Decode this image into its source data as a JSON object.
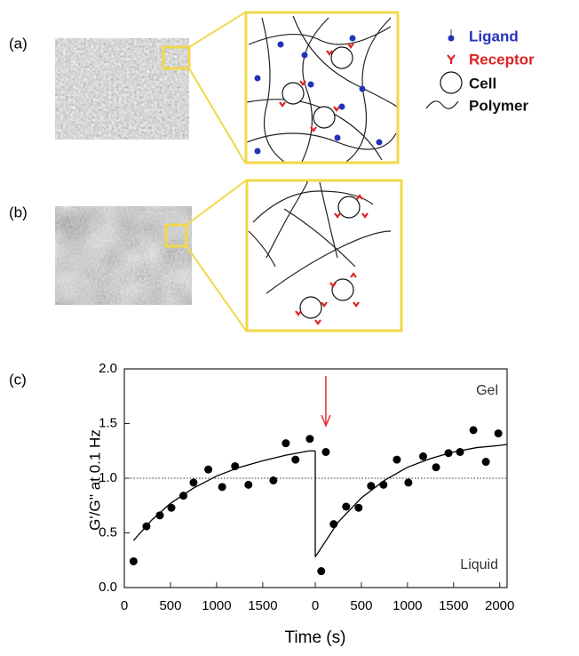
{
  "panel_labels": [
    "(a)",
    "(b)",
    "(c)"
  ],
  "legend": {
    "items": [
      "Ligand",
      "Receptor",
      "Cell",
      "Polymer"
    ]
  },
  "chart_data": [
    {
      "type": "scatter",
      "y_label": "G'/G'' at 0.1 Hz",
      "x_label": "Time (s)",
      "xlim": [
        0,
        2040
      ],
      "xticks": [
        0,
        500,
        1000,
        1500
      ],
      "ylim": [
        0,
        2.0
      ],
      "yticks": [
        {
          "value": 0,
          "label": "0.0"
        },
        {
          "value": 0.5,
          "label": "0.5"
        },
        {
          "value": 1.0,
          "label": "1.0"
        },
        {
          "value": 1.5,
          "label": "1.5"
        },
        {
          "value": 2.0,
          "label": "2.0"
        }
      ],
      "ref_line": 1.0,
      "series": [
        {
          "type": "scatter",
          "color": "#000000",
          "x": [
            100,
            240,
            385,
            510,
            640,
            750,
            910,
            1060,
            1200,
            1345,
            1615,
            1750,
            1855,
            2010
          ],
          "values": [
            0.24,
            0.56,
            0.66,
            0.73,
            0.84,
            0.96,
            1.08,
            0.92,
            1.11,
            0.94,
            0.98,
            1.32,
            1.17,
            1.36
          ]
        },
        {
          "type": "line",
          "color": "#000000",
          "x": [
            100,
            300,
            500,
            750,
            1000,
            1250,
            1500,
            1750,
            2000
          ],
          "values": [
            0.43,
            0.62,
            0.77,
            0.91,
            1.02,
            1.1,
            1.16,
            1.21,
            1.25
          ]
        }
      ]
    },
    {
      "type": "scatter",
      "annotations": [
        "Gel",
        "Liquid"
      ],
      "xlim": [
        0,
        2080
      ],
      "xticks": [
        0,
        500,
        1000,
        1500,
        2000
      ],
      "ylim": [
        0,
        2.0
      ],
      "ref_line": 1.0,
      "arrow_x": 115,
      "arrow_color": "#e03030",
      "series": [
        {
          "type": "scatter",
          "color": "#000000",
          "x": [
            65,
            115,
            200,
            335,
            470,
            605,
            740,
            885,
            1010,
            1170,
            1310,
            1445,
            1570,
            1715,
            1850,
            1985
          ],
          "values": [
            0.15,
            1.24,
            0.58,
            0.74,
            0.73,
            0.93,
            0.94,
            1.17,
            0.96,
            1.2,
            1.1,
            1.23,
            1.24,
            1.44,
            1.15,
            1.41
          ]
        },
        {
          "type": "line",
          "color": "#000000",
          "x": [
            0,
            250,
            500,
            750,
            1000,
            1250,
            1500,
            1750,
            2000,
            2080
          ],
          "values": [
            0.28,
            0.6,
            0.82,
            0.98,
            1.1,
            1.18,
            1.24,
            1.28,
            1.3,
            1.31
          ]
        }
      ]
    }
  ]
}
